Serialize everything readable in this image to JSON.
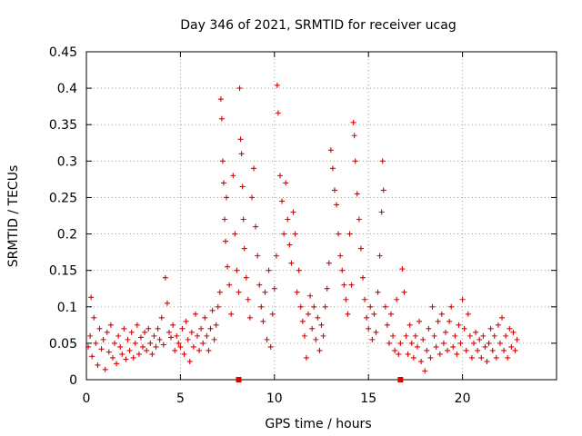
{
  "chart_data": {
    "type": "scatter",
    "title": "Day 346 of 2021, SRMTID for receiver ucag",
    "xlabel": "GPS time / hours",
    "ylabel": "SRMTID / TECUs",
    "xlim": [
      0,
      25
    ],
    "ylim": [
      0,
      0.45
    ],
    "xticks": [
      0,
      5,
      10,
      15,
      20
    ],
    "xtick_labels": [
      "0",
      "5",
      "10",
      "15",
      "20"
    ],
    "yticks": [
      0,
      0.05,
      0.1,
      0.15,
      0.2,
      0.25,
      0.3,
      0.35,
      0.4,
      0.45
    ],
    "ytick_labels": [
      "0",
      "0.05",
      "0.1",
      "0.15",
      "0.2",
      "0.25",
      "0.3",
      "0.35",
      "0.4",
      "0.45"
    ],
    "grid": true,
    "marker": "+",
    "series_color": "#e00000",
    "series": [
      {
        "name": "SRMTID",
        "points": [
          [
            0.1,
            0.045
          ],
          [
            0.2,
            0.06
          ],
          [
            0.25,
            0.113
          ],
          [
            0.3,
            0.032
          ],
          [
            0.4,
            0.085
          ],
          [
            0.5,
            0.05
          ],
          [
            0.6,
            0.02
          ],
          [
            0.7,
            0.07
          ],
          [
            0.8,
            0.042
          ],
          [
            0.9,
            0.055
          ],
          [
            1.0,
            0.014
          ],
          [
            1.1,
            0.065
          ],
          [
            1.2,
            0.038
          ],
          [
            1.3,
            0.075
          ],
          [
            1.4,
            0.03
          ],
          [
            1.5,
            0.05
          ],
          [
            1.6,
            0.022
          ],
          [
            1.7,
            0.06
          ],
          [
            1.8,
            0.045
          ],
          [
            1.9,
            0.035
          ],
          [
            2.0,
            0.07
          ],
          [
            2.1,
            0.028
          ],
          [
            2.2,
            0.055
          ],
          [
            2.3,
            0.04
          ],
          [
            2.4,
            0.065
          ],
          [
            2.5,
            0.03
          ],
          [
            2.6,
            0.05
          ],
          [
            2.7,
            0.075
          ],
          [
            2.8,
            0.035
          ],
          [
            2.9,
            0.058
          ],
          [
            3.0,
            0.045
          ],
          [
            3.1,
            0.065
          ],
          [
            3.2,
            0.04
          ],
          [
            3.3,
            0.07
          ],
          [
            3.4,
            0.05
          ],
          [
            3.5,
            0.035
          ],
          [
            3.6,
            0.06
          ],
          [
            3.7,
            0.045
          ],
          [
            3.8,
            0.07
          ],
          [
            3.9,
            0.055
          ],
          [
            4.0,
            0.085
          ],
          [
            4.1,
            0.048
          ],
          [
            4.2,
            0.14
          ],
          [
            4.3,
            0.105
          ],
          [
            4.4,
            0.065
          ],
          [
            4.5,
            0.058
          ],
          [
            4.6,
            0.075
          ],
          [
            4.7,
            0.04
          ],
          [
            4.8,
            0.06
          ],
          [
            4.9,
            0.05
          ],
          [
            5.0,
            0.045
          ],
          [
            5.1,
            0.07
          ],
          [
            5.2,
            0.035
          ],
          [
            5.3,
            0.08
          ],
          [
            5.4,
            0.055
          ],
          [
            5.5,
            0.025
          ],
          [
            5.6,
            0.065
          ],
          [
            5.7,
            0.045
          ],
          [
            5.8,
            0.09
          ],
          [
            5.9,
            0.06
          ],
          [
            6.0,
            0.04
          ],
          [
            6.1,
            0.07
          ],
          [
            6.2,
            0.05
          ],
          [
            6.3,
            0.085
          ],
          [
            6.4,
            0.06
          ],
          [
            6.5,
            0.04
          ],
          [
            6.6,
            0.07
          ],
          [
            6.7,
            0.095
          ],
          [
            6.8,
            0.055
          ],
          [
            6.9,
            0.075
          ],
          [
            7.0,
            0.1
          ],
          [
            7.1,
            0.12
          ],
          [
            7.15,
            0.385
          ],
          [
            7.2,
            0.358
          ],
          [
            7.25,
            0.3
          ],
          [
            7.3,
            0.27
          ],
          [
            7.35,
            0.22
          ],
          [
            7.4,
            0.19
          ],
          [
            7.45,
            0.25
          ],
          [
            7.5,
            0.155
          ],
          [
            7.6,
            0.13
          ],
          [
            7.7,
            0.09
          ],
          [
            7.8,
            0.28
          ],
          [
            7.9,
            0.2
          ],
          [
            8.0,
            0.15
          ],
          [
            8.1,
            0.12
          ],
          [
            8.15,
            0.4
          ],
          [
            8.2,
            0.33
          ],
          [
            8.25,
            0.31
          ],
          [
            8.3,
            0.265
          ],
          [
            8.35,
            0.22
          ],
          [
            8.4,
            0.18
          ],
          [
            8.5,
            0.14
          ],
          [
            8.6,
            0.11
          ],
          [
            8.7,
            0.085
          ],
          [
            8.8,
            0.25
          ],
          [
            8.9,
            0.29
          ],
          [
            9.0,
            0.21
          ],
          [
            9.1,
            0.17
          ],
          [
            9.2,
            0.13
          ],
          [
            9.3,
            0.1
          ],
          [
            9.4,
            0.08
          ],
          [
            9.5,
            0.12
          ],
          [
            9.6,
            0.055
          ],
          [
            9.7,
            0.15
          ],
          [
            9.8,
            0.045
          ],
          [
            9.9,
            0.09
          ],
          [
            10.0,
            0.125
          ],
          [
            10.1,
            0.17
          ],
          [
            10.15,
            0.404
          ],
          [
            10.2,
            0.366
          ],
          [
            10.3,
            0.28
          ],
          [
            10.4,
            0.245
          ],
          [
            10.5,
            0.2
          ],
          [
            10.6,
            0.27
          ],
          [
            10.7,
            0.22
          ],
          [
            10.8,
            0.185
          ],
          [
            10.9,
            0.16
          ],
          [
            11.0,
            0.23
          ],
          [
            11.1,
            0.2
          ],
          [
            11.2,
            0.12
          ],
          [
            11.3,
            0.15
          ],
          [
            11.4,
            0.1
          ],
          [
            11.5,
            0.08
          ],
          [
            11.6,
            0.06
          ],
          [
            11.7,
            0.03
          ],
          [
            11.8,
            0.09
          ],
          [
            11.9,
            0.115
          ],
          [
            12.0,
            0.07
          ],
          [
            12.1,
            0.1
          ],
          [
            12.2,
            0.055
          ],
          [
            12.3,
            0.085
          ],
          [
            12.4,
            0.04
          ],
          [
            12.5,
            0.075
          ],
          [
            12.6,
            0.06
          ],
          [
            12.7,
            0.1
          ],
          [
            12.8,
            0.125
          ],
          [
            12.9,
            0.16
          ],
          [
            13.0,
            0.315
          ],
          [
            13.1,
            0.29
          ],
          [
            13.2,
            0.26
          ],
          [
            13.3,
            0.24
          ],
          [
            13.4,
            0.2
          ],
          [
            13.5,
            0.17
          ],
          [
            13.6,
            0.15
          ],
          [
            13.7,
            0.13
          ],
          [
            13.8,
            0.11
          ],
          [
            13.9,
            0.09
          ],
          [
            14.0,
            0.2
          ],
          [
            14.1,
            0.13
          ],
          [
            14.2,
            0.353
          ],
          [
            14.25,
            0.335
          ],
          [
            14.3,
            0.3
          ],
          [
            14.4,
            0.255
          ],
          [
            14.5,
            0.22
          ],
          [
            14.6,
            0.18
          ],
          [
            14.7,
            0.14
          ],
          [
            14.8,
            0.11
          ],
          [
            14.9,
            0.085
          ],
          [
            15.0,
            0.07
          ],
          [
            15.1,
            0.1
          ],
          [
            15.2,
            0.055
          ],
          [
            15.3,
            0.09
          ],
          [
            15.4,
            0.065
          ],
          [
            15.5,
            0.12
          ],
          [
            15.6,
            0.17
          ],
          [
            15.7,
            0.23
          ],
          [
            15.75,
            0.3
          ],
          [
            15.8,
            0.26
          ],
          [
            15.9,
            0.1
          ],
          [
            16.0,
            0.075
          ],
          [
            16.1,
            0.05
          ],
          [
            16.2,
            0.09
          ],
          [
            16.3,
            0.06
          ],
          [
            16.4,
            0.04
          ],
          [
            16.5,
            0.11
          ],
          [
            16.6,
            0.035
          ],
          [
            16.7,
            0.05
          ],
          [
            16.8,
            0.152
          ],
          [
            16.9,
            0.12
          ],
          [
            17.0,
            0.06
          ],
          [
            17.1,
            0.035
          ],
          [
            17.2,
            0.075
          ],
          [
            17.3,
            0.05
          ],
          [
            17.4,
            0.03
          ],
          [
            17.5,
            0.06
          ],
          [
            17.6,
            0.045
          ],
          [
            17.7,
            0.08
          ],
          [
            17.8,
            0.025
          ],
          [
            17.9,
            0.055
          ],
          [
            18.0,
            0.012
          ],
          [
            18.1,
            0.04
          ],
          [
            18.2,
            0.07
          ],
          [
            18.3,
            0.03
          ],
          [
            18.4,
            0.1
          ],
          [
            18.5,
            0.06
          ],
          [
            18.6,
            0.045
          ],
          [
            18.7,
            0.08
          ],
          [
            18.8,
            0.035
          ],
          [
            18.9,
            0.09
          ],
          [
            19.0,
            0.05
          ],
          [
            19.1,
            0.065
          ],
          [
            19.2,
            0.04
          ],
          [
            19.3,
            0.08
          ],
          [
            19.4,
            0.1
          ],
          [
            19.5,
            0.045
          ],
          [
            19.6,
            0.06
          ],
          [
            19.7,
            0.035
          ],
          [
            19.8,
            0.075
          ],
          [
            19.9,
            0.05
          ],
          [
            20.0,
            0.11
          ],
          [
            20.1,
            0.07
          ],
          [
            20.2,
            0.04
          ],
          [
            20.3,
            0.09
          ],
          [
            20.4,
            0.06
          ],
          [
            20.5,
            0.03
          ],
          [
            20.6,
            0.05
          ],
          [
            20.7,
            0.065
          ],
          [
            20.8,
            0.04
          ],
          [
            20.9,
            0.055
          ],
          [
            21.0,
            0.03
          ],
          [
            21.1,
            0.06
          ],
          [
            21.2,
            0.045
          ],
          [
            21.3,
            0.025
          ],
          [
            21.4,
            0.05
          ],
          [
            21.5,
            0.07
          ],
          [
            21.6,
            0.04
          ],
          [
            21.7,
            0.06
          ],
          [
            21.8,
            0.03
          ],
          [
            21.9,
            0.075
          ],
          [
            22.0,
            0.05
          ],
          [
            22.1,
            0.085
          ],
          [
            22.2,
            0.04
          ],
          [
            22.3,
            0.06
          ],
          [
            22.4,
            0.03
          ],
          [
            22.5,
            0.07
          ],
          [
            22.6,
            0.045
          ],
          [
            22.7,
            0.065
          ],
          [
            22.8,
            0.04
          ],
          [
            22.9,
            0.055
          ]
        ]
      }
    ],
    "gap_markers": [
      8.1,
      16.7
    ]
  }
}
